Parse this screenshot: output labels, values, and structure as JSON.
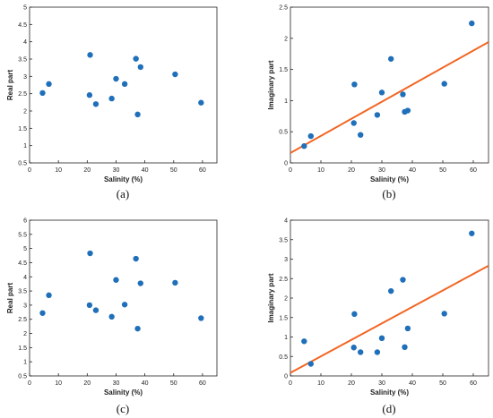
{
  "colors": {
    "point": "#1f6fba",
    "fit": "#f26522",
    "axis": "#222222"
  },
  "chart_data": [
    {
      "type": "scatter",
      "caption": "(a)",
      "xlabel": "Salinity (%)",
      "ylabel": "Real part",
      "xlim": [
        0,
        65
      ],
      "ylim": [
        0.5,
        5
      ],
      "xticks": [
        0,
        10,
        20,
        30,
        40,
        50,
        60
      ],
      "yticks": [
        0.5,
        1,
        1.5,
        2,
        2.5,
        3,
        3.5,
        4,
        4.5,
        5
      ],
      "ytick_labels": [
        "0.5",
        "1",
        "1.5",
        "2",
        "2.5",
        "3",
        "3.5",
        "4",
        "4.5",
        "5"
      ],
      "points": [
        [
          4.5,
          2.52
        ],
        [
          6.7,
          2.78
        ],
        [
          20.8,
          2.46
        ],
        [
          21.0,
          3.62
        ],
        [
          23.0,
          2.2
        ],
        [
          28.5,
          2.36
        ],
        [
          30.0,
          2.93
        ],
        [
          33.0,
          2.78
        ],
        [
          36.9,
          3.51
        ],
        [
          37.5,
          1.9
        ],
        [
          38.5,
          3.27
        ],
        [
          50.5,
          3.06
        ],
        [
          59.5,
          2.24
        ]
      ]
    },
    {
      "type": "scatter",
      "caption": "(b)",
      "xlabel": "Salinity (%)",
      "ylabel": "Imaginary part",
      "xlim": [
        0,
        65
      ],
      "ylim": [
        0,
        2.5
      ],
      "xticks": [
        0,
        10,
        20,
        30,
        40,
        50,
        60
      ],
      "yticks": [
        0,
        0.5,
        1,
        1.5,
        2,
        2.5
      ],
      "ytick_labels": [
        "0",
        "0.5",
        "1",
        "1.5",
        "2",
        "2.5"
      ],
      "points": [
        [
          4.5,
          0.27
        ],
        [
          6.7,
          0.43
        ],
        [
          20.8,
          0.64
        ],
        [
          21.0,
          1.26
        ],
        [
          23.0,
          0.45
        ],
        [
          28.5,
          0.77
        ],
        [
          30.0,
          1.13
        ],
        [
          33.0,
          1.67
        ],
        [
          36.9,
          1.1
        ],
        [
          37.5,
          0.82
        ],
        [
          38.5,
          0.84
        ],
        [
          50.5,
          1.27
        ],
        [
          59.5,
          2.24
        ]
      ],
      "fit": {
        "x": [
          0,
          65
        ],
        "y": [
          0.16,
          1.94
        ]
      }
    },
    {
      "type": "scatter",
      "caption": "(c)",
      "xlabel": "Salinity (%)",
      "ylabel": "Real part",
      "xlim": [
        0,
        65
      ],
      "ylim": [
        0.5,
        6
      ],
      "xticks": [
        0,
        10,
        20,
        30,
        40,
        50,
        60
      ],
      "yticks": [
        0.5,
        1,
        1.5,
        2,
        2.5,
        3,
        3.5,
        4,
        4.5,
        5,
        5.5,
        6
      ],
      "ytick_labels": [
        "0.5",
        "1",
        "1.5",
        "2",
        "2.5",
        "3",
        "3.5",
        "4",
        "4.5",
        "5",
        "5.5",
        "6"
      ],
      "points": [
        [
          4.5,
          2.72
        ],
        [
          6.7,
          3.35
        ],
        [
          20.8,
          3.0
        ],
        [
          21.0,
          4.83
        ],
        [
          23.0,
          2.82
        ],
        [
          28.5,
          2.59
        ],
        [
          30.0,
          3.89
        ],
        [
          33.0,
          3.02
        ],
        [
          36.9,
          4.64
        ],
        [
          37.5,
          2.17
        ],
        [
          38.5,
          3.77
        ],
        [
          50.5,
          3.79
        ],
        [
          59.5,
          2.54
        ]
      ]
    },
    {
      "type": "scatter",
      "caption": "(d)",
      "xlabel": "Salinity (%)",
      "ylabel": "Imaginary part",
      "xlim": [
        0,
        65
      ],
      "ylim": [
        0,
        4
      ],
      "xticks": [
        0,
        10,
        20,
        30,
        40,
        50,
        60
      ],
      "yticks": [
        0,
        0.5,
        1,
        1.5,
        2,
        2.5,
        3,
        3.5,
        4
      ],
      "ytick_labels": [
        "0",
        "0.5",
        "1",
        "1.5",
        "2",
        "2.5",
        "3",
        "3.5",
        "4"
      ],
      "points": [
        [
          4.5,
          0.89
        ],
        [
          6.7,
          0.31
        ],
        [
          20.8,
          0.73
        ],
        [
          21.0,
          1.59
        ],
        [
          23.0,
          0.61
        ],
        [
          28.5,
          0.61
        ],
        [
          30.0,
          0.97
        ],
        [
          33.0,
          2.18
        ],
        [
          36.9,
          2.47
        ],
        [
          37.5,
          0.74
        ],
        [
          38.5,
          1.22
        ],
        [
          50.5,
          1.6
        ],
        [
          59.5,
          3.66
        ]
      ],
      "fit": {
        "x": [
          0,
          65
        ],
        "y": [
          0.08,
          2.83
        ]
      }
    }
  ]
}
